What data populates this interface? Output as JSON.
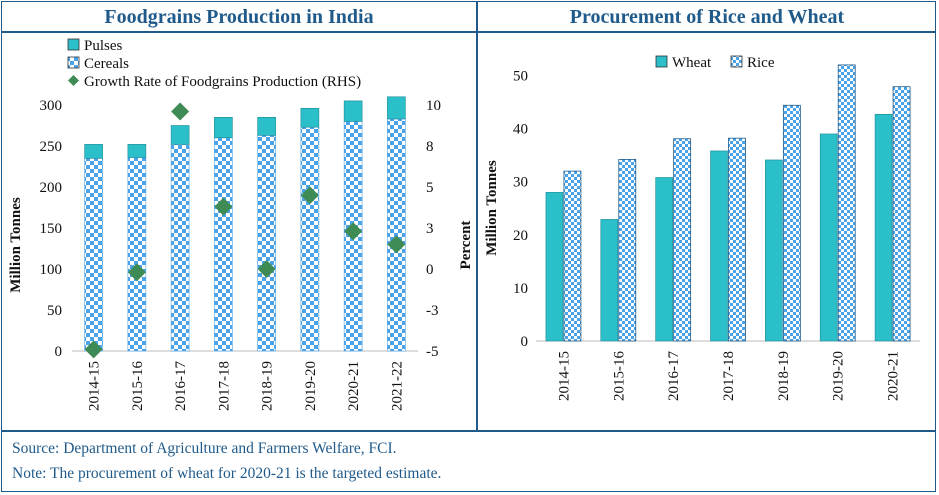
{
  "chart_data": [
    {
      "type": "bar",
      "title": "Foodgrains Production in India",
      "ylabel": "Million Tonnes",
      "y2label": "Percent",
      "ylim": [
        0,
        300
      ],
      "y2lim": [
        -5,
        10
      ],
      "yticks": [
        0,
        50,
        100,
        150,
        200,
        250,
        300
      ],
      "y2ticks": [
        -5,
        -3,
        0,
        3,
        5,
        8,
        10
      ],
      "y2tick_values": [
        -5,
        -2.5,
        0,
        2.5,
        5,
        7.5,
        10
      ],
      "legend_position": "top-left",
      "categories": [
        "2014-15",
        "2015-16",
        "2016-17",
        "2017-18",
        "2018-19",
        "2019-20",
        "2020-21",
        "2021-22"
      ],
      "series": [
        {
          "name": "Pulses",
          "kind": "stacked-bar",
          "color": "#2bbfc9",
          "values": [
            17,
            16,
            23,
            25,
            22,
            23,
            25,
            27
          ]
        },
        {
          "name": "Cereals",
          "kind": "stacked-bar",
          "color": "#4aa3e8",
          "pattern": "checker",
          "values": [
            235,
            236,
            252,
            260,
            263,
            273,
            280,
            283
          ]
        },
        {
          "name": "Growth Rate of Foodgrains Production (RHS)",
          "kind": "marker",
          "axis": "right",
          "color": "#3f8b55",
          "values": [
            -4.9,
            -0.2,
            9.6,
            3.8,
            0.0,
            4.5,
            2.3,
            1.5
          ]
        }
      ]
    },
    {
      "type": "bar",
      "title": "Procurement of Rice and Wheat",
      "ylabel": "Million Tonnes",
      "ylim": [
        0,
        55
      ],
      "yticks": [
        0,
        10,
        20,
        30,
        40,
        50
      ],
      "legend_position": "top-center",
      "categories": [
        "2014-15",
        "2015-16",
        "2016-17",
        "2017-18",
        "2018-19",
        "2019-20",
        "2020-21"
      ],
      "series": [
        {
          "name": "Wheat",
          "color": "#2bbfc9",
          "values": [
            28.0,
            22.9,
            30.8,
            35.8,
            34.1,
            39.0,
            42.7
          ]
        },
        {
          "name": "Rice",
          "color": "#4aa3e8",
          "pattern": "checker",
          "values": [
            32.0,
            34.2,
            38.1,
            38.2,
            44.4,
            52.0,
            47.9
          ]
        }
      ]
    }
  ],
  "footer": {
    "source": "Source: Department of Agriculture and Farmers Welfare, FCI.",
    "note": "Note: The procurement of wheat for 2020-21 is the targeted estimate."
  }
}
